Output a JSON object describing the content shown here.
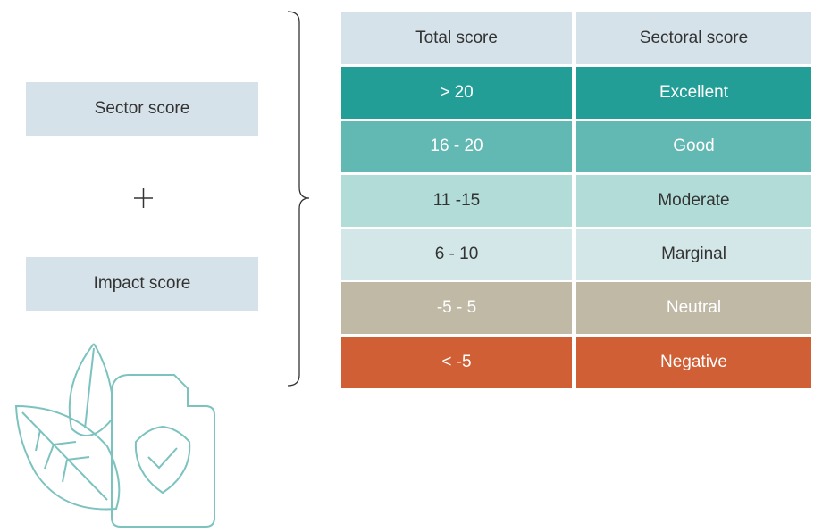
{
  "left": {
    "boxes": [
      "Sector score",
      "Impact score"
    ]
  },
  "table": {
    "header": [
      "Total score",
      "Sectoral score"
    ],
    "rows": [
      [
        "> 20",
        "Excellent"
      ],
      [
        "16 - 20",
        "Good"
      ],
      [
        "11 -15",
        "Moderate"
      ],
      [
        "6 - 10",
        "Marginal"
      ],
      [
        "-5 - 5",
        "Neutral"
      ],
      [
        "< -5",
        "Negative"
      ]
    ]
  }
}
